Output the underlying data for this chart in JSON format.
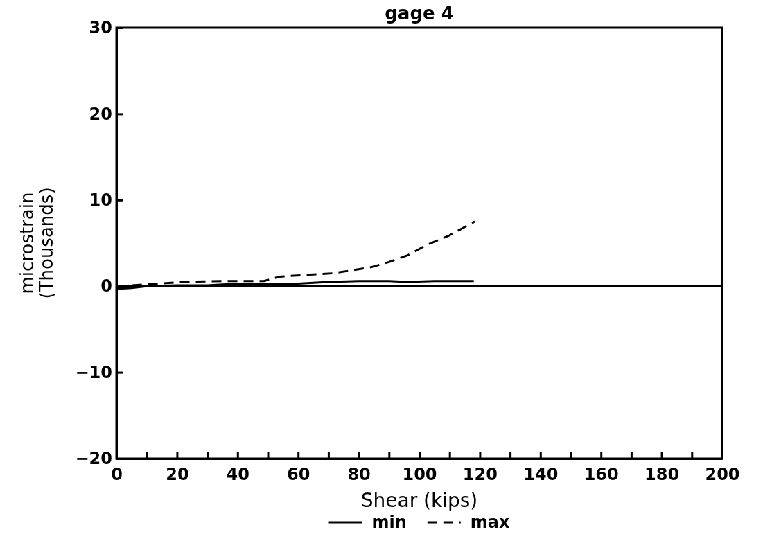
{
  "chart_data": {
    "type": "line",
    "title": "gage 4",
    "xlabel": "Shear (kips)",
    "ylabel": "microstrain\n(Thousands)",
    "xlim": [
      0,
      200
    ],
    "xticks": [
      0,
      {
        "value": 10,
        "label": null
      },
      20,
      {
        "value": 30,
        "label": null
      },
      40,
      {
        "value": 50,
        "label": null
      },
      60,
      {
        "value": 70,
        "label": null
      },
      80,
      {
        "value": 90,
        "label": null
      },
      100,
      {
        "value": 110,
        "label": null
      },
      120,
      {
        "value": 130,
        "label": null
      },
      140,
      {
        "value": 150,
        "label": null
      },
      160,
      {
        "value": 170,
        "label": null
      },
      180,
      {
        "value": 190,
        "label": null
      },
      200
    ],
    "ylim": [
      -20,
      30
    ],
    "yticks": [
      -20,
      -10,
      0,
      10,
      20,
      30
    ],
    "grid": false,
    "legend": "bottom",
    "ref_lines": [
      {
        "axis": "y",
        "value": 0
      }
    ],
    "series": [
      {
        "name": "min",
        "color": "#000000",
        "line_style": "solid",
        "x": [
          0,
          5,
          10,
          20,
          30,
          40,
          50,
          60,
          70,
          80,
          90,
          96,
          105,
          118
        ],
        "values": [
          -0.3,
          -0.2,
          0,
          0.1,
          0.1,
          0.3,
          0.3,
          0.3,
          0.5,
          0.6,
          0.6,
          0.5,
          0.6,
          0.6
        ]
      },
      {
        "name": "max",
        "color": "#000000",
        "line_style": "dashed",
        "x": [
          0,
          5,
          10,
          22.6,
          35,
          48.7,
          53.8,
          62,
          71.6,
          84,
          90,
          96.3,
          102,
          110,
          118.3
        ],
        "values": [
          -0.2,
          0.1,
          0.2,
          0.5,
          0.6,
          0.6,
          1.1,
          1.3,
          1.5,
          2.2,
          2.8,
          3.6,
          4.7,
          5.9,
          7.5
        ]
      }
    ]
  }
}
